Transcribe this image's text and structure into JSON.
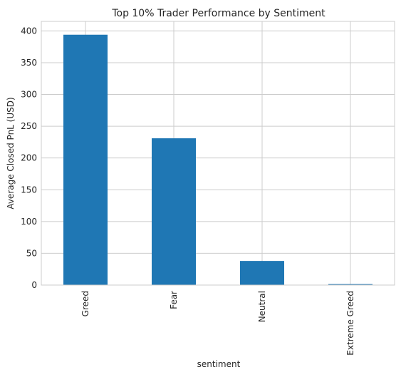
{
  "chart_data": {
    "type": "bar",
    "title": "Top 10% Trader Performance by Sentiment",
    "xlabel": "sentiment",
    "ylabel": "Average Closed PnL (USD)",
    "categories": [
      "Greed",
      "Fear",
      "Neutral",
      "Extreme Greed"
    ],
    "values": [
      394,
      231,
      38,
      1.5
    ],
    "ylim": [
      0,
      415
    ],
    "yticks": [
      "0",
      "50",
      "100",
      "150",
      "200",
      "250",
      "300",
      "350",
      "400"
    ],
    "grid": true,
    "bar_color": "#1f77b4",
    "grid_color": "#cccccc"
  }
}
